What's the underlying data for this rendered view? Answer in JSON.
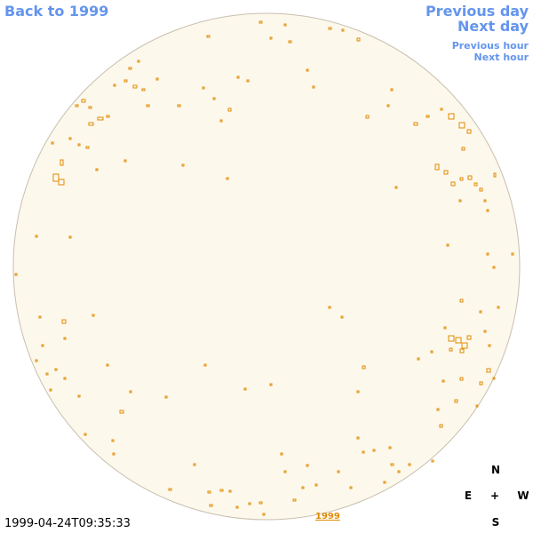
{
  "header": {
    "back_link": "Back to 1999",
    "previous_day": "Previous day",
    "next_day": "Next day",
    "previous_hour": "Previous hour",
    "next_hour": "Next hour"
  },
  "footer": {
    "timestamp": "1999-04-24T09:35:33",
    "year_link": "1999"
  },
  "compass": {
    "north": "N",
    "east": "E",
    "center": "+",
    "west": "W",
    "south": "S"
  }
}
